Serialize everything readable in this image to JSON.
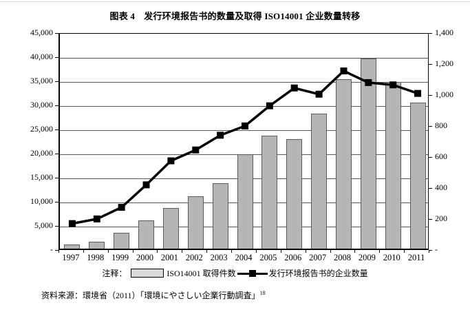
{
  "title": "图表 4　发行环境报告书的数量及取得 ISO14001 企业数量转移",
  "legend": {
    "note_label": "注释：",
    "bar_label": "ISO14001 取得件数",
    "line_label": "发行环境报告书的企业数量"
  },
  "footer": {
    "text": "资料来源：環境省（2011）「環境にやさしい企業行動調査」",
    "superscript": "18"
  },
  "chart_data": {
    "type": "combo_bar_line",
    "title": "图表 4　发行环境报告书的数量及取得 ISO14001 企业数量转移",
    "categories": [
      "1997",
      "1998",
      "1999",
      "2000",
      "2001",
      "2002",
      "2003",
      "2004",
      "2005",
      "2006",
      "2007",
      "2008",
      "2009",
      "2010",
      "2011"
    ],
    "series": [
      {
        "name": "ISO14001 取得件数",
        "type": "bar",
        "axis": "left",
        "values": [
          900,
          1500,
          3300,
          5800,
          8400,
          10800,
          13600,
          19600,
          23500,
          22700,
          28000,
          35200,
          39500,
          34600,
          30300
        ]
      },
      {
        "name": "发行环境报告书的企业数量",
        "type": "line",
        "axis": "right",
        "values": [
          175,
          205,
          280,
          425,
          580,
          650,
          745,
          805,
          935,
          1050,
          1010,
          1160,
          1085,
          1070,
          1015
        ]
      }
    ],
    "left_axis": {
      "min": 0,
      "max": 45000,
      "step": 5000,
      "tick_labels_top_down": [
        "45,000",
        "40,000",
        "35,000",
        "30,000",
        "25,000",
        "20,000",
        "15,000",
        "10,000",
        "5,000",
        "-"
      ]
    },
    "right_axis": {
      "min": 0,
      "max": 1400,
      "step": 200,
      "tick_labels_top_down": [
        "1,400",
        "1,200",
        "1,000",
        "800",
        "600",
        "400",
        "200",
        "-"
      ]
    },
    "grid": true,
    "legend_position": "bottom",
    "colors": {
      "bar_fill": "#b5b5b5",
      "bar_border": "#595959",
      "line": "#000000",
      "gridline": "#595959",
      "legend_swatch_fill": "#d9d9d9"
    }
  }
}
